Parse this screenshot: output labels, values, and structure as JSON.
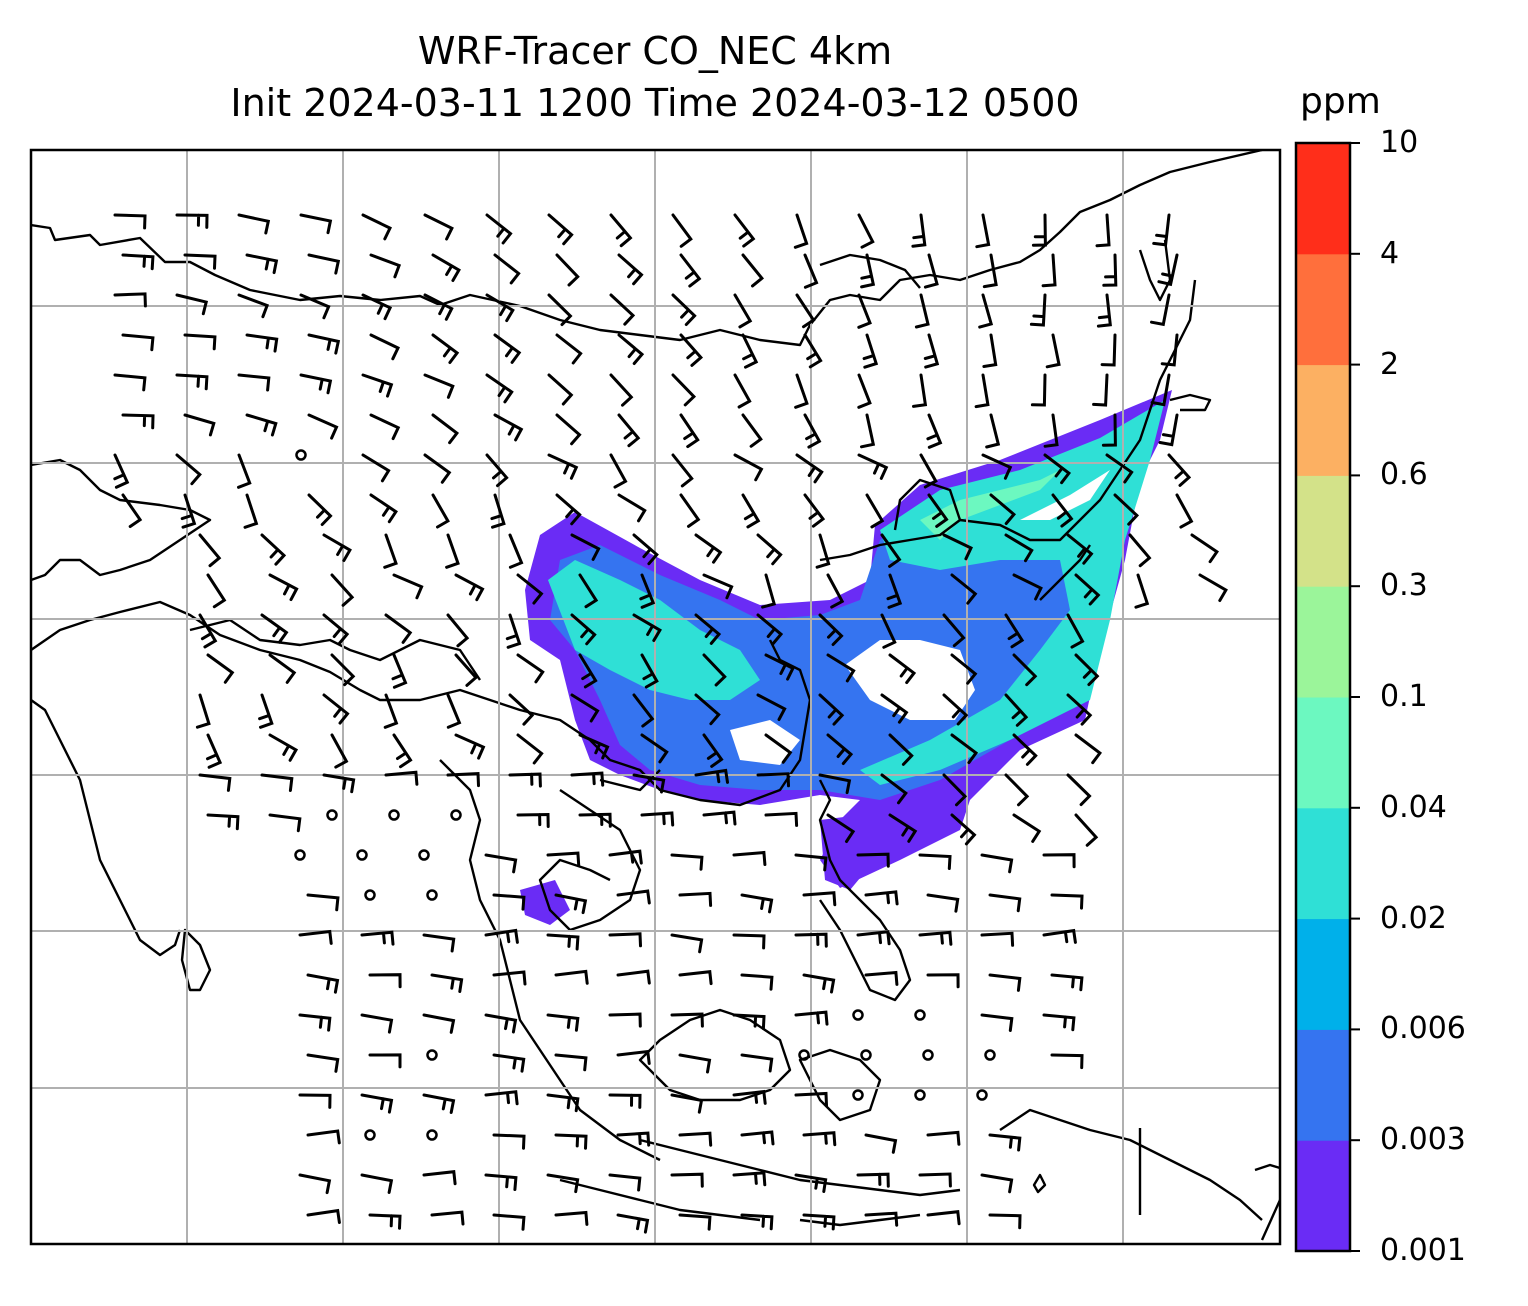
{
  "title": {
    "line1": "WRF-Tracer CO_NEC 4km",
    "line2": "Init 2024-03-11 1200 Time 2024-03-12 0500"
  },
  "colorbar": {
    "unit": "ppm",
    "levels": [
      "0.001",
      "0.003",
      "0.006",
      "0.02",
      "0.04",
      "0.1",
      "0.3",
      "0.6",
      "2",
      "4",
      "10"
    ],
    "colors": [
      "#6a2cf5",
      "#3574f0",
      "#00b0ea",
      "#2fe0d6",
      "#6cf8c0",
      "#9bf59a",
      "#d3e289",
      "#fcb062",
      "#ff6f3c",
      "#ff2e1a"
    ]
  },
  "map": {
    "background": "#ffffff",
    "gridline_color": "#b0b0b0",
    "coastline_color": "#000000",
    "barb_color": "#000000"
  }
}
